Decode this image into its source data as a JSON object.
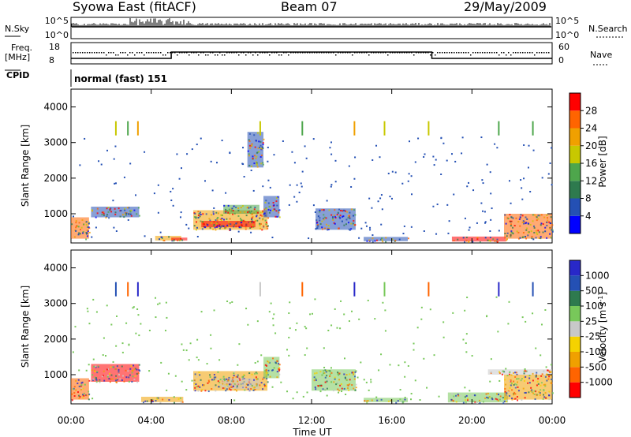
{
  "header": {
    "station": "Syowa East (fitACF)",
    "beam": "Beam 07",
    "date": "29/May/2009"
  },
  "status_panel": {
    "nsky_label": "N.Sky",
    "nsearch_label": "N.Search",
    "freq_label_line1": "Freq.",
    "freq_label_line2": "[MHz]",
    "nave_label": "Nave",
    "cpid_label": "CPID",
    "cpid_value": "normal (fast) 151",
    "noise_ticks": [
      "10^5",
      "10^0"
    ],
    "freq_ticks": [
      "18",
      "8"
    ],
    "nave_ticks": [
      "60",
      "0"
    ]
  },
  "chart_data": [
    {
      "type": "heatmap",
      "name": "power",
      "xlabel": "",
      "ylabel": "Slant Range [km]",
      "xlim": [
        0,
        24
      ],
      "ylim": [
        180,
        4500
      ],
      "x_ticks": [
        0,
        4,
        8,
        12,
        16,
        20,
        24
      ],
      "y_ticks": [
        1000,
        2000,
        3000,
        4000
      ],
      "colorbar": {
        "label": "Power [dB]",
        "ticks": [
          "28",
          "24",
          "20",
          "16",
          "12",
          "8",
          "4"
        ],
        "colors": [
          "#0000ff",
          "#2450b4",
          "#2e7a4e",
          "#4ea64c",
          "#c8c800",
          "#f0a000",
          "#ff6400",
          "#ff0000"
        ]
      },
      "regions": [
        {
          "t0": 0.0,
          "t1": 0.9,
          "r0": 300,
          "r1": 900,
          "color": "#ff6400"
        },
        {
          "t0": 1.0,
          "t1": 3.4,
          "r0": 900,
          "r1": 1200,
          "color": "#2450b4"
        },
        {
          "t0": 4.2,
          "t1": 5.5,
          "r0": 250,
          "r1": 380,
          "color": "#f0a000"
        },
        {
          "t0": 5.0,
          "t1": 5.8,
          "r0": 250,
          "r1": 330,
          "color": "#ff0000"
        },
        {
          "t0": 6.1,
          "t1": 9.8,
          "r0": 550,
          "r1": 1100,
          "color": "#f0a000"
        },
        {
          "t0": 6.5,
          "t1": 9.2,
          "r0": 620,
          "r1": 800,
          "color": "#ff0000"
        },
        {
          "t0": 7.6,
          "t1": 9.4,
          "r0": 1000,
          "r1": 1250,
          "color": "#4ea64c"
        },
        {
          "t0": 9.6,
          "t1": 10.4,
          "r0": 900,
          "r1": 1500,
          "color": "#2450b4"
        },
        {
          "t0": 8.8,
          "t1": 9.6,
          "r0": 2300,
          "r1": 3300,
          "color": "#2450b4"
        },
        {
          "t0": 12.2,
          "t1": 14.2,
          "r0": 550,
          "r1": 1150,
          "color": "#2450b4"
        },
        {
          "t0": 14.6,
          "t1": 16.8,
          "r0": 230,
          "r1": 350,
          "color": "#2450b4"
        },
        {
          "t0": 19.0,
          "t1": 21.7,
          "r0": 220,
          "r1": 360,
          "color": "#ff0000"
        },
        {
          "t0": 21.6,
          "t1": 24.0,
          "r0": 300,
          "r1": 1000,
          "color": "#ff6400"
        }
      ],
      "stripes": [
        {
          "t": 2.2,
          "r0": 3200,
          "r1": 3600,
          "color": "#c8c800"
        },
        {
          "t": 2.8,
          "r0": 3200,
          "r1": 3600,
          "color": "#4ea64c"
        },
        {
          "t": 3.3,
          "r0": 3200,
          "r1": 3600,
          "color": "#f0a000"
        },
        {
          "t": 9.4,
          "r0": 3200,
          "r1": 3600,
          "color": "#c8c800"
        },
        {
          "t": 11.5,
          "r0": 3200,
          "r1": 3600,
          "color": "#4ea64c"
        },
        {
          "t": 14.1,
          "r0": 3200,
          "r1": 3600,
          "color": "#f0a000"
        },
        {
          "t": 15.6,
          "r0": 3200,
          "r1": 3600,
          "color": "#c8c800"
        },
        {
          "t": 17.8,
          "r0": 3200,
          "r1": 3600,
          "color": "#c8c800"
        },
        {
          "t": 21.3,
          "r0": 3200,
          "r1": 3600,
          "color": "#4ea64c"
        },
        {
          "t": 23.0,
          "r0": 3200,
          "r1": 3600,
          "color": "#4ea64c"
        }
      ]
    },
    {
      "type": "heatmap",
      "name": "velocity",
      "xlabel": "Time UT",
      "ylabel": "Slant Range [km]",
      "xlim": [
        0,
        24
      ],
      "ylim": [
        180,
        4500
      ],
      "x_ticks": [
        0,
        4,
        8,
        12,
        16,
        20,
        24
      ],
      "x_tick_labels": [
        "00:00",
        "04:00",
        "08:00",
        "12:00",
        "16:00",
        "20:00",
        "00:00"
      ],
      "y_ticks": [
        1000,
        2000,
        3000,
        4000
      ],
      "colorbar": {
        "label": "Velocity [m s",
        "label_superscript": "-1",
        "label_suffix": "]",
        "ticks": [
          "1000",
          "500",
          "100",
          "25",
          "-25",
          "-100",
          "-500",
          "-1000"
        ],
        "colors": [
          "#ff0000",
          "#ff6400",
          "#f0a000",
          "#f5d200",
          "#c8c8c8",
          "#78c85a",
          "#2e7a4e",
          "#2450b4",
          "#2828c8"
        ]
      },
      "regions": [
        {
          "t0": 0.0,
          "t1": 0.9,
          "r0": 300,
          "r1": 900,
          "color": "#ff6400"
        },
        {
          "t0": 1.0,
          "t1": 3.4,
          "r0": 800,
          "r1": 1300,
          "color": "#ff0000"
        },
        {
          "t0": 3.5,
          "t1": 5.6,
          "r0": 230,
          "r1": 380,
          "color": "#f0a000"
        },
        {
          "t0": 6.1,
          "t1": 9.8,
          "r0": 550,
          "r1": 1100,
          "color": "#f0a000"
        },
        {
          "t0": 7.5,
          "t1": 9.4,
          "r0": 600,
          "r1": 900,
          "color": "#c8c8c8"
        },
        {
          "t0": 9.6,
          "t1": 10.4,
          "r0": 900,
          "r1": 1500,
          "color": "#78c85a"
        },
        {
          "t0": 12.0,
          "t1": 14.2,
          "r0": 550,
          "r1": 1150,
          "color": "#78c85a"
        },
        {
          "t0": 14.6,
          "t1": 16.8,
          "r0": 230,
          "r1": 350,
          "color": "#78c85a"
        },
        {
          "t0": 18.8,
          "t1": 21.8,
          "r0": 220,
          "r1": 500,
          "color": "#78c85a"
        },
        {
          "t0": 20.8,
          "t1": 24.0,
          "r0": 1000,
          "r1": 1150,
          "color": "#c8c8c8"
        },
        {
          "t0": 21.6,
          "t1": 24.0,
          "r0": 300,
          "r1": 1000,
          "color": "#f0a000"
        }
      ],
      "stripes": [
        {
          "t": 2.2,
          "r0": 3200,
          "r1": 3600,
          "color": "#2450b4"
        },
        {
          "t": 2.8,
          "r0": 3200,
          "r1": 3600,
          "color": "#ff6400"
        },
        {
          "t": 3.3,
          "r0": 3200,
          "r1": 3600,
          "color": "#2828c8"
        },
        {
          "t": 9.4,
          "r0": 3200,
          "r1": 3600,
          "color": "#c8c8c8"
        },
        {
          "t": 11.5,
          "r0": 3200,
          "r1": 3600,
          "color": "#ff6400"
        },
        {
          "t": 14.1,
          "r0": 3200,
          "r1": 3600,
          "color": "#2828c8"
        },
        {
          "t": 15.6,
          "r0": 3200,
          "r1": 3600,
          "color": "#78c85a"
        },
        {
          "t": 17.8,
          "r0": 3200,
          "r1": 3600,
          "color": "#ff6400"
        },
        {
          "t": 21.3,
          "r0": 3200,
          "r1": 3600,
          "color": "#2828c8"
        },
        {
          "t": 23.0,
          "r0": 3200,
          "r1": 3600,
          "color": "#2450b4"
        }
      ]
    }
  ]
}
